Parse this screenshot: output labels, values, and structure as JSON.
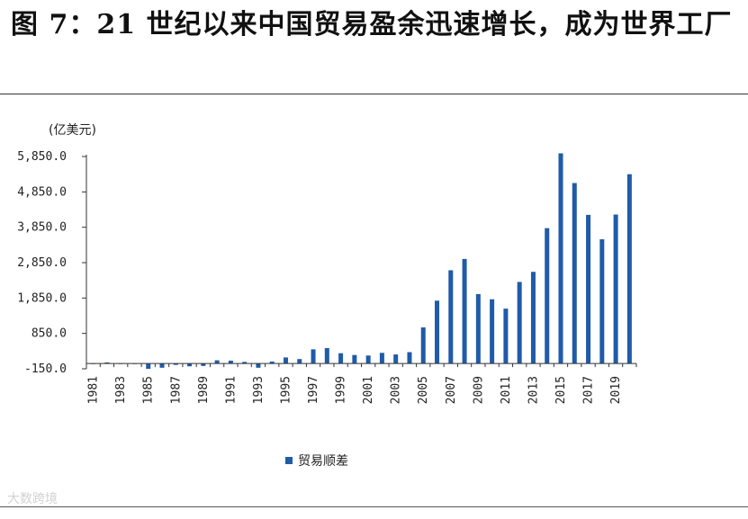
{
  "title": "图 7：21 世纪以来中国贸易盈余迅速增长，成为世界工厂",
  "watermark": "大数跨境",
  "chart_data": {
    "type": "bar",
    "unit_label": "(亿美元)",
    "y_ticks": [
      "5,850.0",
      "4,850.0",
      "3,850.0",
      "2,850.0",
      "1,850.0",
      "850.0",
      "-150.0"
    ],
    "y_tick_values": [
      5850,
      4850,
      3850,
      2850,
      1850,
      850,
      -150
    ],
    "ylim": [
      -150,
      5850
    ],
    "x_tick_labels": [
      "1981",
      "1983",
      "1985",
      "1987",
      "1989",
      "1991",
      "1993",
      "1995",
      "1997",
      "1999",
      "2001",
      "2003",
      "2005",
      "2007",
      "2009",
      "2011",
      "2013",
      "2015",
      "2017",
      "2019"
    ],
    "categories": [
      "1981",
      "1982",
      "1983",
      "1984",
      "1985",
      "1986",
      "1987",
      "1988",
      "1989",
      "1990",
      "1991",
      "1992",
      "1993",
      "1994",
      "1995",
      "1996",
      "1997",
      "1998",
      "1999",
      "2000",
      "2001",
      "2002",
      "2003",
      "2004",
      "2005",
      "2006",
      "2007",
      "2008",
      "2009",
      "2010",
      "2011",
      "2012",
      "2013",
      "2014",
      "2015",
      "2016",
      "2017",
      "2018",
      "2019",
      "2020"
    ],
    "series": [
      {
        "name": "贸易顺差",
        "color": "#1f5ba8",
        "values": [
          0,
          30,
          -10,
          0,
          -150,
          -120,
          -40,
          -80,
          -70,
          90,
          80,
          45,
          -120,
          55,
          170,
          125,
          400,
          435,
          290,
          240,
          225,
          300,
          255,
          320,
          1020,
          1775,
          2635,
          2955,
          1960,
          1815,
          1550,
          2305,
          2590,
          3825,
          5940,
          5100,
          4200,
          3510,
          4210,
          5350
        ]
      }
    ],
    "legend": [
      {
        "label": "贸易顺差",
        "color": "#1f5ba8"
      }
    ],
    "legend_position": "bottom",
    "grid": false
  }
}
